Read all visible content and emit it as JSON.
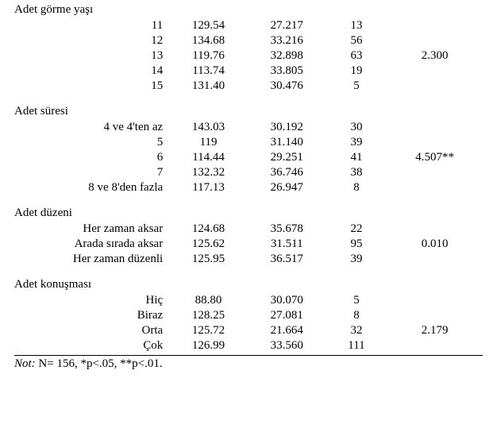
{
  "sections": [
    {
      "title": "Adet görme yaşı",
      "f": "2.300",
      "f_row_index": 2,
      "rows": [
        {
          "label": "11",
          "mean": "129.54",
          "sd": "27.217",
          "n": "13"
        },
        {
          "label": "12",
          "mean": "134.68",
          "sd": "33.216",
          "n": "56"
        },
        {
          "label": "13",
          "mean": "119.76",
          "sd": "32.898",
          "n": "63"
        },
        {
          "label": "14",
          "mean": "113.74",
          "sd": "33.805",
          "n": "19"
        },
        {
          "label": "15",
          "mean": "131.40",
          "sd": "30.476",
          "n": "5"
        }
      ]
    },
    {
      "title": "Adet süresi",
      "f": "4.507**",
      "f_row_index": 2,
      "rows": [
        {
          "label": "4 ve 4'ten az",
          "mean": "143.03",
          "sd": "30.192",
          "n": "30"
        },
        {
          "label": "5",
          "mean": "119",
          "sd": "31.140",
          "n": "39"
        },
        {
          "label": "6",
          "mean": "114.44",
          "sd": "29.251",
          "n": "41"
        },
        {
          "label": "7",
          "mean": "132.32",
          "sd": "36.746",
          "n": "38"
        },
        {
          "label": "8 ve 8'den fazla",
          "mean": "117.13",
          "sd": "26.947",
          "n": "8"
        }
      ]
    },
    {
      "title": "Adet düzeni",
      "f": "0.010",
      "f_row_index": 1,
      "rows": [
        {
          "label": "Her zaman aksar",
          "mean": "124.68",
          "sd": "35.678",
          "n": "22"
        },
        {
          "label": "Arada sırada aksar",
          "mean": "125.62",
          "sd": "31.511",
          "n": "95"
        },
        {
          "label": "Her zaman düzenli",
          "mean": "125.95",
          "sd": "36.517",
          "n": "39"
        }
      ]
    },
    {
      "title": "Adet konuşması",
      "f": "2.179",
      "f_row_index": 2,
      "rows": [
        {
          "label": "Hiç",
          "mean": "88.80",
          "sd": "30.070",
          "n": "5"
        },
        {
          "label": "Biraz",
          "mean": "128.25",
          "sd": "27.081",
          "n": "8"
        },
        {
          "label": "Orta",
          "mean": "125.72",
          "sd": "21.664",
          "n": "32"
        },
        {
          "label": "Çok",
          "mean": "126.99",
          "sd": "33.560",
          "n": "111"
        }
      ]
    }
  ],
  "note_prefix": "Not:",
  "note_rest": " N= 156, *p<.05, **p<.01."
}
